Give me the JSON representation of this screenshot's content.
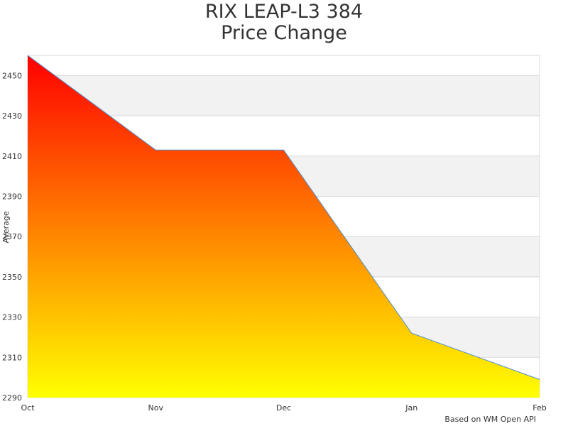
{
  "title_line1": "RIX LEAP-L3 384",
  "title_line2": "Price Change",
  "credit": "Based on WM Open API",
  "colors": {
    "gradient_top": "#ff0000",
    "gradient_bottom": "#ffff00",
    "series_line": "#4a8fd4",
    "band": "#f2f2f2",
    "grid": "#d9d9d9"
  },
  "chart_data": {
    "type": "area",
    "title": "RIX LEAP-L3 384 Price Change",
    "xlabel": "",
    "ylabel": "Average",
    "categories": [
      "Oct",
      "Nov",
      "Dec",
      "Jan",
      "Feb"
    ],
    "values": [
      2460,
      2413,
      2413,
      2322,
      2299
    ],
    "ylim": [
      2290,
      2460
    ],
    "yticks": [
      2290,
      2310,
      2330,
      2350,
      2370,
      2390,
      2410,
      2430,
      2450
    ],
    "grid": true,
    "legend": "none"
  }
}
